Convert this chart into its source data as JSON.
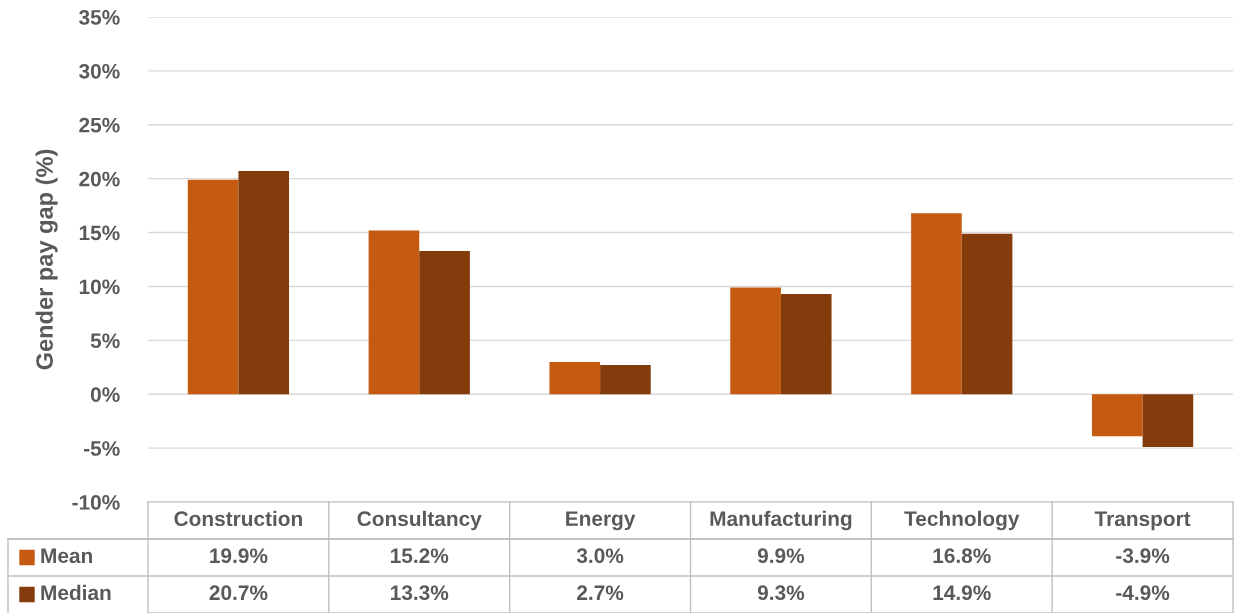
{
  "chart_data": {
    "type": "bar",
    "ylabel": "Gender pay gap (%)",
    "categories": [
      "Construction",
      "Consultancy",
      "Energy",
      "Manufacturing",
      "Technology",
      "Transport"
    ],
    "series": [
      {
        "name": "Mean",
        "color": "#c55a11",
        "values": [
          19.9,
          15.2,
          3.0,
          9.9,
          16.8,
          -3.9
        ],
        "value_labels": [
          "19.9%",
          "15.2%",
          "3.0%",
          "9.9%",
          "16.8%",
          "-3.9%"
        ]
      },
      {
        "name": "Median",
        "color": "#843c0c",
        "values": [
          20.7,
          13.3,
          2.7,
          9.3,
          14.9,
          -4.9
        ],
        "value_labels": [
          "20.7%",
          "13.3%",
          "2.7%",
          "9.3%",
          "14.9%",
          "-4.9%"
        ]
      }
    ],
    "ylim": [
      -10,
      35
    ],
    "yticks": [
      {
        "value": -10,
        "label": "-10%"
      },
      {
        "value": -5,
        "label": "-5%"
      },
      {
        "value": 0,
        "label": "0%"
      },
      {
        "value": 5,
        "label": "5%"
      },
      {
        "value": 10,
        "label": "10%"
      },
      {
        "value": 15,
        "label": "15%"
      },
      {
        "value": 20,
        "label": "20%"
      },
      {
        "value": 25,
        "label": "25%"
      },
      {
        "value": 30,
        "label": "30%"
      },
      {
        "value": 35,
        "label": "35%"
      }
    ],
    "grid": "y",
    "legend": "bottom left",
    "data_labels": true
  }
}
